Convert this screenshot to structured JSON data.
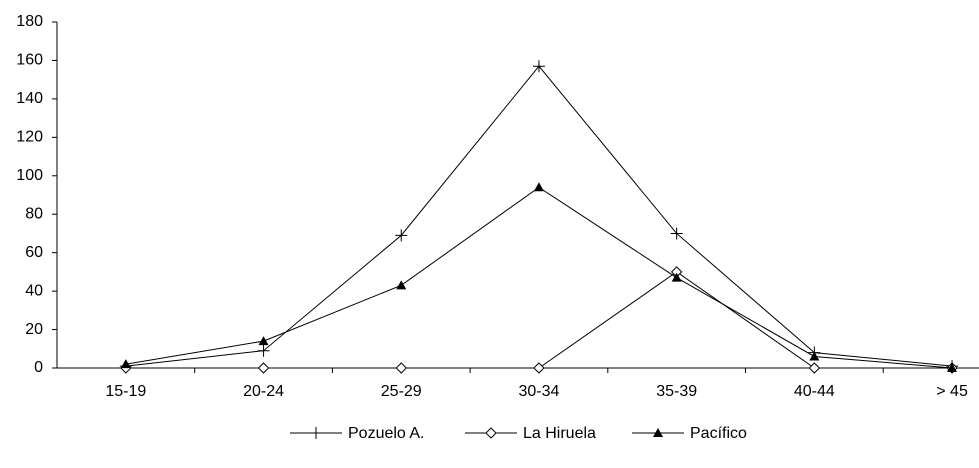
{
  "chart_data": {
    "type": "line",
    "categories": [
      "15-19",
      "20-24",
      "25-29",
      "30-34",
      "35-39",
      "40-44",
      "> 45"
    ],
    "series": [
      {
        "name": "Pozuelo A.",
        "color": "#000000",
        "marker": "plus",
        "values": [
          1,
          9,
          69,
          157,
          70,
          8,
          1
        ]
      },
      {
        "name": "La Hiruela",
        "color": "#000000",
        "marker": "diamond",
        "values": [
          0,
          0,
          0,
          0,
          50,
          0,
          0
        ]
      },
      {
        "name": "Pacífico",
        "color": "#000000",
        "marker": "triangle",
        "values": [
          2,
          14,
          43,
          94,
          47,
          6,
          0
        ]
      }
    ],
    "ylim": [
      0,
      180
    ],
    "yticks": [
      0,
      20,
      40,
      60,
      80,
      100,
      120,
      140,
      160,
      180
    ],
    "grid": false,
    "legend": "bottom"
  }
}
